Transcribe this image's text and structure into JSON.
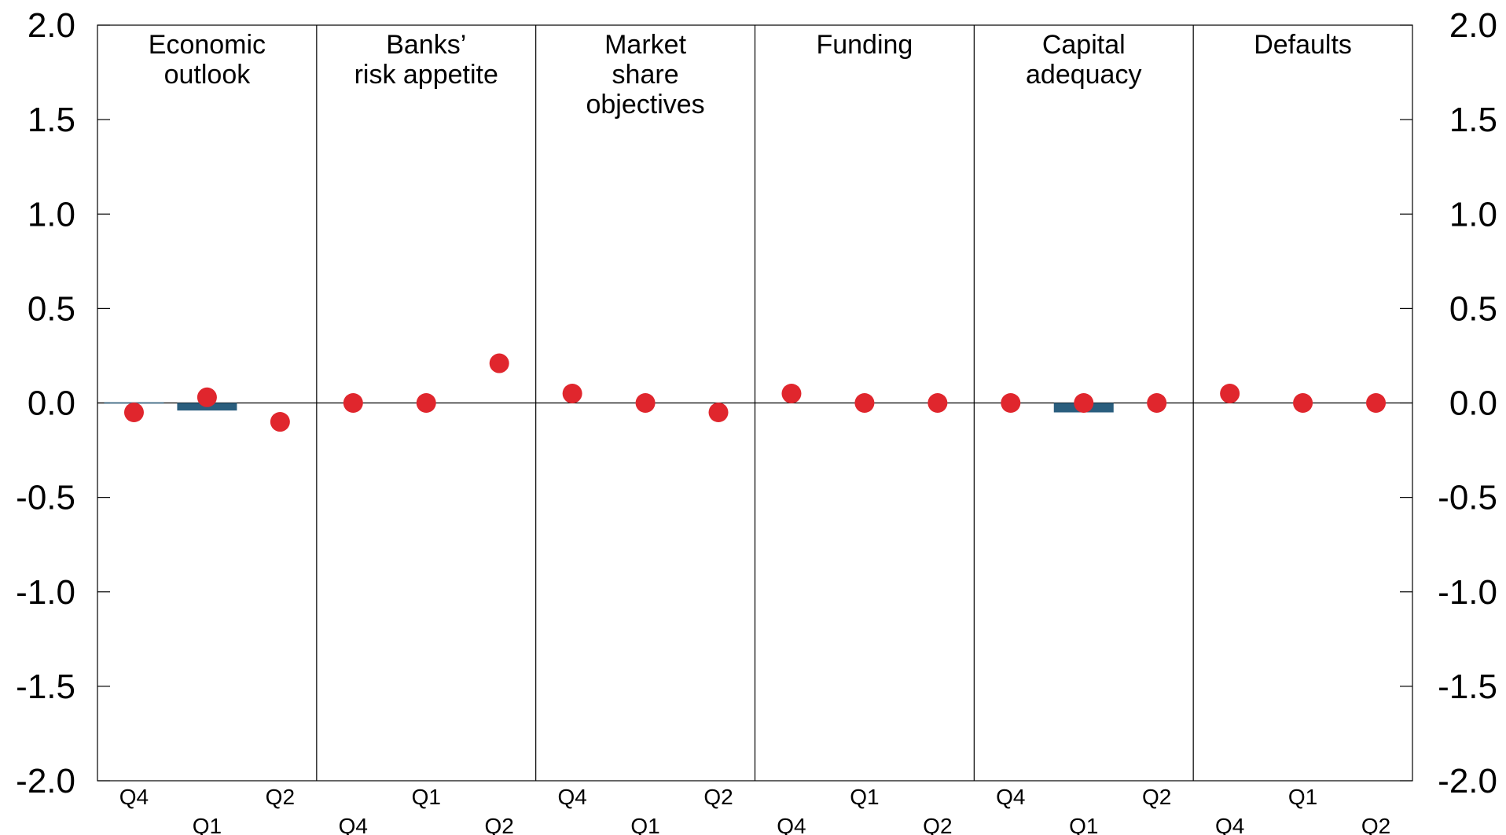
{
  "chart_data": {
    "type": "bar",
    "ylim": [
      -2.0,
      2.0
    ],
    "y_ticks": [
      2.0,
      1.5,
      1.0,
      0.5,
      0.0,
      -0.5,
      -1.0,
      -1.5,
      -2.0
    ],
    "y_tick_labels": [
      "2.0",
      "1.5",
      "1.0",
      "0.5",
      "0.0",
      "-0.5",
      "-1.0",
      "-1.5",
      "-2.0"
    ],
    "grid": false,
    "colors": {
      "bar": "#2a5e7e",
      "dot": "#e0262d"
    },
    "panels": [
      {
        "title_lines": [
          "Economic",
          "outlook"
        ],
        "categories": [
          "Q4",
          "Q1",
          "Q2"
        ],
        "bars": [
          0.0,
          -0.04,
          null
        ],
        "dots": [
          -0.05,
          0.03,
          -0.1
        ]
      },
      {
        "title_lines": [
          "Banks’",
          "risk appetite"
        ],
        "categories": [
          "Q4",
          "Q1",
          "Q2"
        ],
        "bars": [
          null,
          null,
          null
        ],
        "dots": [
          0.0,
          0.0,
          0.21
        ]
      },
      {
        "title_lines": [
          "Market",
          "share",
          "objectives"
        ],
        "categories": [
          "Q4",
          "Q1",
          "Q2"
        ],
        "bars": [
          null,
          null,
          null
        ],
        "dots": [
          0.05,
          0.0,
          -0.05
        ]
      },
      {
        "title_lines": [
          "Funding"
        ],
        "categories": [
          "Q4",
          "Q1",
          "Q2"
        ],
        "bars": [
          null,
          null,
          null
        ],
        "dots": [
          0.05,
          0.0,
          0.0
        ]
      },
      {
        "title_lines": [
          "Capital",
          "adequacy"
        ],
        "categories": [
          "Q4",
          "Q1",
          "Q2"
        ],
        "bars": [
          null,
          -0.05,
          null
        ],
        "dots": [
          0.0,
          0.0,
          0.0
        ]
      },
      {
        "title_lines": [
          "Defaults"
        ],
        "categories": [
          "Q4",
          "Q1",
          "Q2"
        ],
        "bars": [
          null,
          null,
          null
        ],
        "dots": [
          0.05,
          0.0,
          0.0
        ]
      }
    ]
  }
}
